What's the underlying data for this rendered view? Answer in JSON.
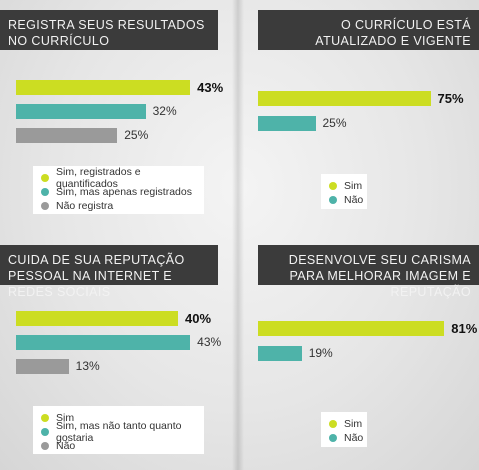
{
  "colors": {
    "lime": "#ccdd22",
    "teal": "#4eb3a9",
    "gray": "#9a9a9a",
    "header_bg": "#3b3b3b"
  },
  "chart_data": [
    {
      "type": "bar",
      "title": "REGISTRA SEUS RESULTADOS NO CURRÍCULO",
      "series": [
        {
          "name": "Sim, registrados e quantificados",
          "values": [
            43
          ],
          "label": "43%",
          "color": "#ccdd22"
        },
        {
          "name": "Sim, mas apenas registrados",
          "values": [
            32
          ],
          "label": "32%",
          "color": "#4eb3a9"
        },
        {
          "name": "Não registra",
          "values": [
            25
          ],
          "label": "25%",
          "color": "#9a9a9a"
        }
      ]
    },
    {
      "type": "bar",
      "title": "O CURRÍCULO ESTÁ ATUALIZADO E VIGENTE",
      "series": [
        {
          "name": "Sim",
          "values": [
            75
          ],
          "label": "75%",
          "color": "#ccdd22"
        },
        {
          "name": "Não",
          "values": [
            25
          ],
          "label": "25%",
          "color": "#4eb3a9"
        }
      ]
    },
    {
      "type": "bar",
      "title": "CUIDA DE SUA REPUTAÇÃO PESSOAL NA INTERNET E REDES SOCIAIS",
      "series": [
        {
          "name": "Sim",
          "values": [
            40
          ],
          "label": "40%",
          "color": "#ccdd22"
        },
        {
          "name": "Sim, mas não tanto quanto gostaria",
          "values": [
            43
          ],
          "label": "43%",
          "color": "#4eb3a9"
        },
        {
          "name": "Não",
          "values": [
            13
          ],
          "label": "13%",
          "color": "#9a9a9a"
        }
      ]
    },
    {
      "type": "bar",
      "title": "DESENVOLVE SEU CARISMA PARA MELHORAR IMAGEM E REPUTAÇÃO",
      "series": [
        {
          "name": "Sim",
          "values": [
            81
          ],
          "label": "81%",
          "color": "#ccdd22"
        },
        {
          "name": "Não",
          "values": [
            19
          ],
          "label": "19%",
          "color": "#4eb3a9"
        }
      ]
    }
  ]
}
